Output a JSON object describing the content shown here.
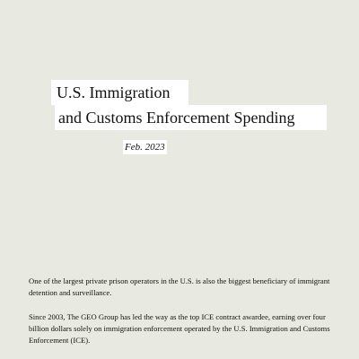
{
  "title": {
    "line1": "U.S. Immigration",
    "line2": "and Customs Enforcement Spending"
  },
  "date": "Feb. 2023",
  "paragraphs": [
    "One of the largest private prison operators in the U.S. is also the biggest beneficiary of immigrant detention and surveillance.",
    "Since 2003, The GEO Group has led the way as the top ICE contract awardee, earning over four billion dollars solely on immigration enforcement operated by the U.S. Immigration and Customs Enforcement (ICE)."
  ],
  "colors": {
    "background": "#e8eae1",
    "highlight": "#ffffff",
    "text": "#111111"
  }
}
